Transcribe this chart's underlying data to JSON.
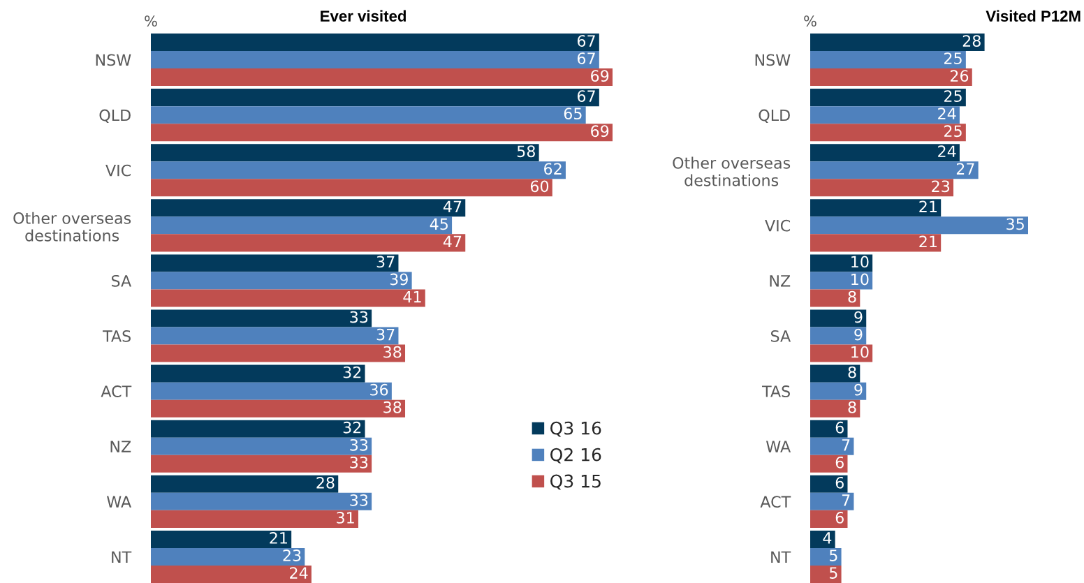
{
  "chart_data": [
    {
      "type": "bar",
      "orientation": "horizontal",
      "title": "Ever visited",
      "annotations": [
        "%"
      ],
      "tick_labels": "y",
      "data_labels": true,
      "legend": "bottom right",
      "categories": [
        "NSW",
        "QLD",
        "VIC",
        "Other overseas\ndestinations",
        "SA",
        "TAS",
        "ACT",
        "NZ",
        "WA",
        "NT"
      ],
      "series": [
        {
          "name": "Q3 16",
          "color": "#033a5c",
          "values": [
            67,
            67,
            58,
            47,
            37,
            33,
            32,
            32,
            28,
            21
          ]
        },
        {
          "name": "Q2 16",
          "color": "#4f81bd",
          "values": [
            67,
            65,
            62,
            45,
            39,
            37,
            36,
            33,
            33,
            23
          ]
        },
        {
          "name": "Q3 15",
          "color": "#c0504d",
          "values": [
            69,
            69,
            60,
            47,
            41,
            38,
            38,
            33,
            31,
            24
          ]
        }
      ]
    },
    {
      "type": "bar",
      "orientation": "horizontal",
      "title": "Visited P12M",
      "annotations": [
        "%"
      ],
      "tick_labels": "y",
      "data_labels": true,
      "categories": [
        "NSW",
        "QLD",
        "Other overseas\ndestinations",
        "VIC",
        "NZ",
        "SA",
        "TAS",
        "WA",
        "ACT",
        "NT"
      ],
      "series": [
        {
          "color": "#033a5c",
          "values": [
            28,
            25,
            24,
            21,
            10,
            9,
            8,
            6,
            6,
            4
          ]
        },
        {
          "color": "#4f81bd",
          "values": [
            25,
            24,
            27,
            35,
            10,
            9,
            9,
            7,
            7,
            5
          ]
        },
        {
          "color": "#c0504d",
          "values": [
            26,
            25,
            23,
            21,
            8,
            10,
            8,
            6,
            6,
            5
          ]
        }
      ]
    }
  ]
}
